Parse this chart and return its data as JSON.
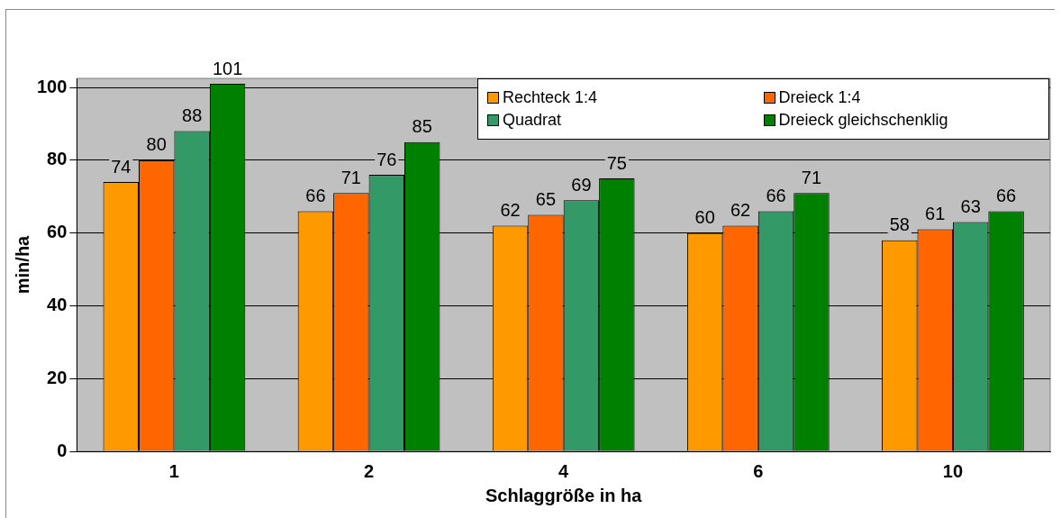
{
  "chart_data": {
    "type": "bar",
    "xlabel": "Schlaggröße in ha",
    "ylabel": "min/ha",
    "categories": [
      "1",
      "2",
      "4",
      "6",
      "10"
    ],
    "series": [
      {
        "name": "Rechteck 1:4",
        "color": "#ff9900",
        "values": [
          74,
          66,
          62,
          60,
          58
        ]
      },
      {
        "name": "Dreieck 1:4",
        "color": "#ff6600",
        "values": [
          80,
          71,
          65,
          62,
          61
        ]
      },
      {
        "name": "Quadrat",
        "color": "#339966",
        "values": [
          88,
          76,
          69,
          66,
          63
        ]
      },
      {
        "name": "Dreieck gleichschenklig",
        "color": "#008000",
        "values": [
          101,
          85,
          75,
          71,
          66
        ]
      }
    ],
    "ylim": [
      0,
      102.5
    ],
    "yticks": [
      0,
      20,
      40,
      60,
      80,
      100
    ],
    "grid": "y",
    "legend": "top right",
    "data_labels": true
  }
}
